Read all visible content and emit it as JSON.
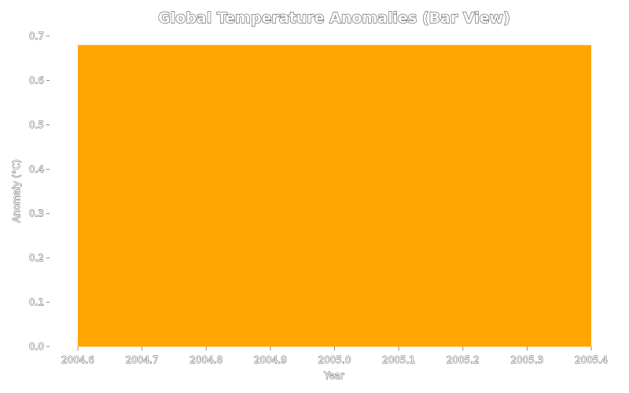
{
  "chart_data": {
    "type": "bar",
    "title": "Global Temperature Anomalies (Bar View)",
    "xlabel": "Year",
    "ylabel": "Anomaly (°C)",
    "x": [
      2005.0
    ],
    "values": [
      0.68
    ],
    "bar_span": [
      2004.6,
      2005.4
    ],
    "xlim": [
      2004.6,
      2005.4
    ],
    "ylim": [
      0.0,
      0.7
    ],
    "xticks": [
      "2004.6",
      "2004.7",
      "2004.8",
      "2004.9",
      "2005.0",
      "2005.1",
      "2005.2",
      "2005.3",
      "2005.4"
    ],
    "yticks": [
      "0.0",
      "0.1",
      "0.2",
      "0.3",
      "0.4",
      "0.5",
      "0.6",
      "0.7"
    ],
    "grid": false,
    "colors": {
      "bar": "#FFA500"
    }
  }
}
